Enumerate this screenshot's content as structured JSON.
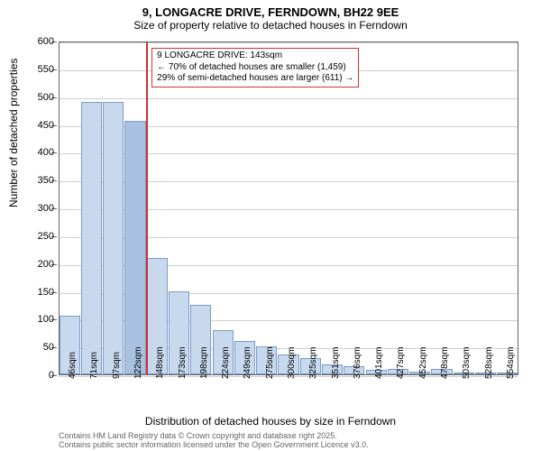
{
  "title": "9, LONGACRE DRIVE, FERNDOWN, BH22 9EE",
  "subtitle": "Size of property relative to detached houses in Ferndown",
  "chart": {
    "type": "bar",
    "y_title": "Number of detached properties",
    "x_title": "Distribution of detached houses by size in Ferndown",
    "ylim": [
      0,
      600
    ],
    "ytick_step": 50,
    "yticks": [
      0,
      50,
      100,
      150,
      200,
      250,
      300,
      350,
      400,
      450,
      500,
      550,
      600
    ],
    "background_color": "#ffffff",
    "grid_color": "#d0d0d0",
    "axis_color": "#666666",
    "bar_fill": "#c9d9ed",
    "bar_border": "#7a9cc6",
    "highlight_fill": "#a9c1e0",
    "marker_color": "#d03030",
    "marker_x_index": 4,
    "bar_width": 0.95,
    "categories": [
      "46sqm",
      "71sqm",
      "97sqm",
      "122sqm",
      "148sqm",
      "173sqm",
      "198sqm",
      "224sqm",
      "249sqm",
      "275sqm",
      "300sqm",
      "325sqm",
      "351sqm",
      "376sqm",
      "401sqm",
      "427sqm",
      "452sqm",
      "478sqm",
      "503sqm",
      "528sqm",
      "554sqm"
    ],
    "values": [
      105,
      490,
      490,
      455,
      210,
      150,
      125,
      80,
      60,
      50,
      35,
      30,
      18,
      15,
      8,
      10,
      5,
      10,
      3,
      3,
      3
    ],
    "highlight_index": 3
  },
  "annotation": {
    "line1": "9 LONGACRE DRIVE: 143sqm",
    "line2": "← 70% of detached houses are smaller (1,459)",
    "line3": "29% of semi-detached houses are larger (611) →"
  },
  "footer": {
    "line1": "Contains HM Land Registry data © Crown copyright and database right 2025.",
    "line2": "Contains public sector information licensed under the Open Government Licence v3.0."
  },
  "fonts": {
    "title_size": 13,
    "subtitle_size": 12,
    "axis_label_size": 11,
    "tick_size": 10,
    "footer_size": 9
  }
}
